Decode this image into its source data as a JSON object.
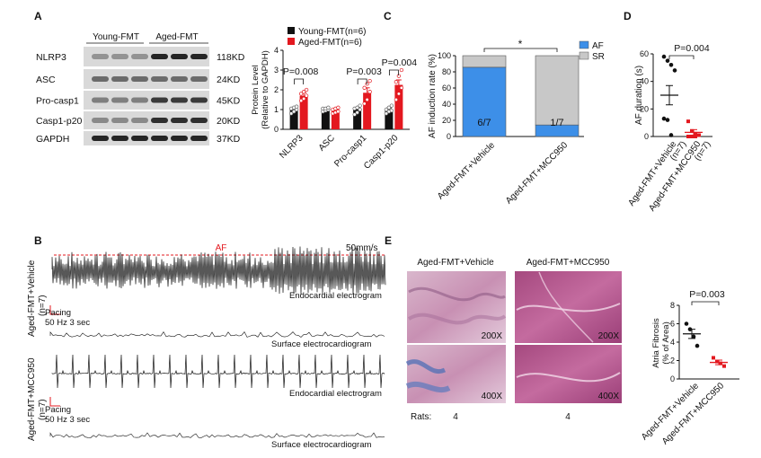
{
  "panels": {
    "a": "A",
    "b": "B",
    "c": "C",
    "d": "D",
    "e": "E"
  },
  "panel_a": {
    "groups": [
      "Young-FMT",
      "Aged-FMT"
    ],
    "rows": [
      {
        "name": "NLRP3",
        "kd": "118KD"
      },
      {
        "name": "ASC",
        "kd": "24KD"
      },
      {
        "name": "Pro-casp1",
        "kd": "45KD"
      },
      {
        "name": "Casp1-p20",
        "kd": "20KD"
      },
      {
        "name": "GAPDH",
        "kd": "37KD"
      }
    ]
  },
  "panel_b": {
    "top_label": "Aged-FMT+Vehicle",
    "top_n": "(n=7)",
    "bottom_label": "Aged-FMT+MCC950",
    "bottom_n": "(n=7)",
    "af": "AF",
    "scale": "50mm/s",
    "endo": "Endocardial electrogram",
    "surface": "Surface electrocardiogram",
    "pacing": "Pacing",
    "pacing_param": "50 Hz 3 sec"
  },
  "panel_e": {
    "col1": "Aged-FMT+Vehicle",
    "col2": "Aged-FMT+MCC950",
    "mag_top": "200X",
    "mag_bottom": "400X",
    "rats_label": "Rats:",
    "rats_vehicle": "4",
    "rats_mcc": "4"
  },
  "chart_data": [
    {
      "id": "protein-level",
      "type": "bar",
      "ylabel_line1": "Protein Level",
      "ylabel_line2": "(Relative to GAPDH)",
      "categories": [
        "NLRP3",
        "ASC",
        "Pro-casp1",
        "Casp1-p20"
      ],
      "series": [
        {
          "name": "Young-FMT(n=6)",
          "color": "#111111",
          "values": [
            1.0,
            1.0,
            1.0,
            1.0
          ],
          "errors": [
            0.1,
            0.06,
            0.08,
            0.08
          ],
          "points": [
            [
              0.8,
              0.9,
              1.0,
              1.05,
              1.1,
              1.15
            ],
            [
              0.9,
              0.95,
              1.0,
              1.05,
              1.05,
              1.1
            ],
            [
              0.75,
              0.85,
              1.0,
              1.05,
              1.1,
              1.2
            ],
            [
              0.8,
              0.9,
              0.95,
              1.0,
              1.1,
              1.2
            ]
          ]
        },
        {
          "name": "Aged-FMT(n=6)",
          "color": "#e3181f",
          "values": [
            1.7,
            0.95,
            1.85,
            2.25
          ],
          "errors": [
            0.15,
            0.08,
            0.25,
            0.25
          ],
          "points": [
            [
              1.45,
              1.55,
              1.7,
              1.8,
              1.9,
              2.0
            ],
            [
              0.8,
              0.85,
              0.9,
              1.0,
              1.05,
              1.1
            ],
            [
              1.3,
              1.5,
              1.9,
              2.1,
              2.3,
              2.45
            ],
            [
              1.5,
              1.8,
              2.1,
              2.4,
              2.7,
              3.0
            ]
          ]
        }
      ],
      "ylim": [
        0,
        4
      ],
      "yticks": [
        "0",
        "1",
        "2",
        "3",
        "4"
      ],
      "pvalues": [
        {
          "cat": 0,
          "text": "P=0.008"
        },
        {
          "cat": 2,
          "text": "P=0.003"
        },
        {
          "cat": 3,
          "text": "P=0.004"
        }
      ]
    },
    {
      "id": "af-induction",
      "type": "bar",
      "ylabel": "AF induction rate (%)",
      "categories": [
        "Aged-FMT+Vehicle",
        "Aged-FMT+MCC950"
      ],
      "series": [
        {
          "name": "AF",
          "color": "#3d8fe8",
          "values": [
            85.7,
            14.3
          ]
        },
        {
          "name": "SR",
          "color": "#c8c8c8",
          "values": [
            14.3,
            85.7
          ]
        }
      ],
      "bar_labels": [
        "6/7",
        "1/7"
      ],
      "ylim": [
        0,
        100
      ],
      "yticks": [
        "0",
        "20",
        "40",
        "60",
        "80",
        "100"
      ],
      "significance": "*"
    },
    {
      "id": "af-duration",
      "type": "scatter",
      "ylabel": "AF duration (s)",
      "categories": [
        "Aged-FMT+Vehicle",
        "Aged-FMT+MCC950"
      ],
      "cat_n": [
        "(n=7)",
        "(n=7)"
      ],
      "series": [
        {
          "name": "Vehicle",
          "color": "#111111",
          "mean": 30,
          "sem": 7,
          "points": [
            58,
            55,
            52,
            48,
            13,
            12,
            1
          ]
        },
        {
          "name": "MCC950",
          "color": "#e3181f",
          "mean": 3,
          "sem": 2,
          "points": [
            11,
            4,
            2,
            1,
            0,
            0,
            0
          ]
        }
      ],
      "ylim": [
        0,
        60
      ],
      "yticks": [
        "0",
        "20",
        "40",
        "60"
      ],
      "pvalue": "P=0.004"
    },
    {
      "id": "atria-fibrosis",
      "type": "scatter",
      "ylabel_line1": "Atria Fibrosis",
      "ylabel_line2": "(% of Area)",
      "categories": [
        "Aged-FMT+Vehicle",
        "Aged-FMT+MCC950"
      ],
      "series": [
        {
          "name": "Vehicle",
          "color": "#111111",
          "mean": 4.9,
          "sem": 0.5,
          "points": [
            6.0,
            5.4,
            4.6,
            3.6
          ]
        },
        {
          "name": "MCC950",
          "color": "#e3181f",
          "mean": 1.8,
          "sem": 0.25,
          "points": [
            2.3,
            1.9,
            1.7,
            1.4
          ]
        }
      ],
      "ylim": [
        0,
        8
      ],
      "yticks": [
        "0",
        "2",
        "4",
        "6",
        "8"
      ],
      "pvalue": "P=0.003"
    }
  ]
}
